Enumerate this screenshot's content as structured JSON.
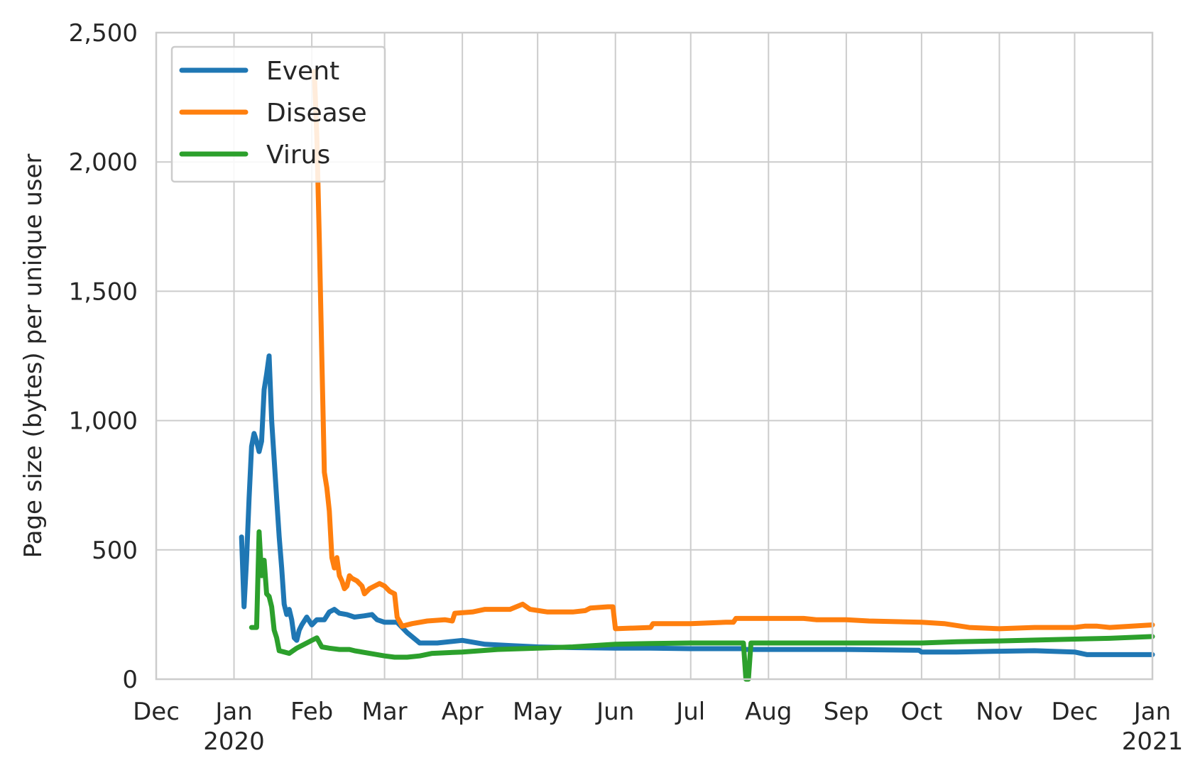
{
  "chart_data": {
    "type": "line",
    "title": "",
    "xlabel": "",
    "ylabel": "Page size (bytes) per unique user",
    "x_ticks": [
      {
        "date": "2019-12-01",
        "label": "Dec",
        "sub": ""
      },
      {
        "date": "2020-01-01",
        "label": "Jan",
        "sub": "2020"
      },
      {
        "date": "2020-02-01",
        "label": "Feb",
        "sub": ""
      },
      {
        "date": "2020-03-01",
        "label": "Mar",
        "sub": ""
      },
      {
        "date": "2020-04-01",
        "label": "Apr",
        "sub": ""
      },
      {
        "date": "2020-05-01",
        "label": "May",
        "sub": ""
      },
      {
        "date": "2020-06-01",
        "label": "Jun",
        "sub": ""
      },
      {
        "date": "2020-07-01",
        "label": "Jul",
        "sub": ""
      },
      {
        "date": "2020-08-01",
        "label": "Aug",
        "sub": ""
      },
      {
        "date": "2020-09-01",
        "label": "Sep",
        "sub": ""
      },
      {
        "date": "2020-10-01",
        "label": "Oct",
        "sub": ""
      },
      {
        "date": "2020-11-01",
        "label": "Nov",
        "sub": ""
      },
      {
        "date": "2020-12-01",
        "label": "Dec",
        "sub": ""
      },
      {
        "date": "2021-01-01",
        "label": "Jan",
        "sub": "2021"
      }
    ],
    "y_ticks": [
      {
        "value": 0,
        "label": "0"
      },
      {
        "value": 500,
        "label": "500"
      },
      {
        "value": 1000,
        "label": "1,000"
      },
      {
        "value": 1500,
        "label": "1,500"
      },
      {
        "value": 2000,
        "label": "2,000"
      },
      {
        "value": 2500,
        "label": "2,500"
      }
    ],
    "xlim": [
      "2019-12-01",
      "2021-01-01"
    ],
    "ylim": [
      0,
      2500
    ],
    "grid": true,
    "legend": "top-left",
    "series": [
      {
        "name": "Event",
        "color": "#1f77b4",
        "points": [
          [
            "2020-01-04",
            550
          ],
          [
            "2020-01-05",
            280
          ],
          [
            "2020-01-06",
            460
          ],
          [
            "2020-01-07",
            700
          ],
          [
            "2020-01-08",
            900
          ],
          [
            "2020-01-09",
            950
          ],
          [
            "2020-01-10",
            920
          ],
          [
            "2020-01-11",
            880
          ],
          [
            "2020-01-12",
            920
          ],
          [
            "2020-01-13",
            1120
          ],
          [
            "2020-01-14",
            1180
          ],
          [
            "2020-01-15",
            1250
          ],
          [
            "2020-01-16",
            1000
          ],
          [
            "2020-01-17",
            850
          ],
          [
            "2020-01-18",
            700
          ],
          [
            "2020-01-19",
            550
          ],
          [
            "2020-01-20",
            430
          ],
          [
            "2020-01-21",
            290
          ],
          [
            "2020-01-22",
            250
          ],
          [
            "2020-01-23",
            270
          ],
          [
            "2020-01-24",
            230
          ],
          [
            "2020-01-25",
            160
          ],
          [
            "2020-01-26",
            150
          ],
          [
            "2020-01-27",
            190
          ],
          [
            "2020-01-28",
            210
          ],
          [
            "2020-01-30",
            240
          ],
          [
            "2020-02-01",
            210
          ],
          [
            "2020-02-03",
            230
          ],
          [
            "2020-02-06",
            230
          ],
          [
            "2020-02-08",
            260
          ],
          [
            "2020-02-10",
            270
          ],
          [
            "2020-02-12",
            255
          ],
          [
            "2020-02-15",
            250
          ],
          [
            "2020-02-18",
            240
          ],
          [
            "2020-02-22",
            245
          ],
          [
            "2020-02-25",
            250
          ],
          [
            "2020-02-27",
            230
          ],
          [
            "2020-03-01",
            220
          ],
          [
            "2020-03-06",
            220
          ],
          [
            "2020-03-10",
            180
          ],
          [
            "2020-03-15",
            140
          ],
          [
            "2020-03-22",
            140
          ],
          [
            "2020-04-01",
            150
          ],
          [
            "2020-04-10",
            135
          ],
          [
            "2020-04-20",
            130
          ],
          [
            "2020-05-01",
            125
          ],
          [
            "2020-05-15",
            122
          ],
          [
            "2020-06-01",
            120
          ],
          [
            "2020-06-15",
            120
          ],
          [
            "2020-07-01",
            118
          ],
          [
            "2020-07-22",
            118
          ],
          [
            "2020-07-23",
            115
          ],
          [
            "2020-08-01",
            115
          ],
          [
            "2020-09-01",
            115
          ],
          [
            "2020-09-30",
            112
          ],
          [
            "2020-10-01",
            105
          ],
          [
            "2020-10-15",
            105
          ],
          [
            "2020-11-01",
            108
          ],
          [
            "2020-11-15",
            110
          ],
          [
            "2020-12-01",
            105
          ],
          [
            "2020-12-06",
            95
          ],
          [
            "2021-01-01",
            95
          ]
        ]
      },
      {
        "name": "Disease",
        "color": "#ff7f0e",
        "points": [
          [
            "2020-02-02",
            2350
          ],
          [
            "2020-02-03",
            2100
          ],
          [
            "2020-02-04",
            1700
          ],
          [
            "2020-02-05",
            1250
          ],
          [
            "2020-02-06",
            800
          ],
          [
            "2020-02-07",
            740
          ],
          [
            "2020-02-08",
            650
          ],
          [
            "2020-02-09",
            470
          ],
          [
            "2020-02-10",
            430
          ],
          [
            "2020-02-11",
            470
          ],
          [
            "2020-02-12",
            400
          ],
          [
            "2020-02-13",
            380
          ],
          [
            "2020-02-14",
            350
          ],
          [
            "2020-02-15",
            360
          ],
          [
            "2020-02-16",
            400
          ],
          [
            "2020-02-17",
            390
          ],
          [
            "2020-02-19",
            380
          ],
          [
            "2020-02-21",
            360
          ],
          [
            "2020-02-22",
            330
          ],
          [
            "2020-02-24",
            350
          ],
          [
            "2020-02-26",
            360
          ],
          [
            "2020-02-28",
            370
          ],
          [
            "2020-03-01",
            360
          ],
          [
            "2020-03-03",
            340
          ],
          [
            "2020-03-05",
            330
          ],
          [
            "2020-03-06",
            240
          ],
          [
            "2020-03-08",
            205
          ],
          [
            "2020-03-12",
            215
          ],
          [
            "2020-03-18",
            225
          ],
          [
            "2020-03-25",
            230
          ],
          [
            "2020-03-28",
            225
          ],
          [
            "2020-03-29",
            255
          ],
          [
            "2020-04-05",
            260
          ],
          [
            "2020-04-10",
            270
          ],
          [
            "2020-04-20",
            270
          ],
          [
            "2020-04-25",
            290
          ],
          [
            "2020-04-28",
            270
          ],
          [
            "2020-05-05",
            260
          ],
          [
            "2020-05-15",
            260
          ],
          [
            "2020-05-20",
            265
          ],
          [
            "2020-05-22",
            275
          ],
          [
            "2020-05-29",
            280
          ],
          [
            "2020-05-31",
            280
          ],
          [
            "2020-06-01",
            195
          ],
          [
            "2020-06-15",
            200
          ],
          [
            "2020-06-16",
            215
          ],
          [
            "2020-07-01",
            215
          ],
          [
            "2020-07-15",
            220
          ],
          [
            "2020-07-18",
            220
          ],
          [
            "2020-07-19",
            235
          ],
          [
            "2020-08-01",
            235
          ],
          [
            "2020-08-15",
            235
          ],
          [
            "2020-08-20",
            230
          ],
          [
            "2020-09-01",
            230
          ],
          [
            "2020-09-10",
            225
          ],
          [
            "2020-10-01",
            220
          ],
          [
            "2020-10-10",
            215
          ],
          [
            "2020-10-20",
            200
          ],
          [
            "2020-11-01",
            195
          ],
          [
            "2020-11-15",
            200
          ],
          [
            "2020-12-01",
            200
          ],
          [
            "2020-12-05",
            205
          ],
          [
            "2020-12-10",
            205
          ],
          [
            "2020-12-15",
            200
          ],
          [
            "2021-01-01",
            210
          ]
        ]
      },
      {
        "name": "Virus",
        "color": "#2ca02c",
        "points": [
          [
            "2020-01-08",
            200
          ],
          [
            "2020-01-10",
            200
          ],
          [
            "2020-01-11",
            570
          ],
          [
            "2020-01-12",
            400
          ],
          [
            "2020-01-13",
            460
          ],
          [
            "2020-01-14",
            330
          ],
          [
            "2020-01-15",
            320
          ],
          [
            "2020-01-16",
            280
          ],
          [
            "2020-01-17",
            190
          ],
          [
            "2020-01-18",
            160
          ],
          [
            "2020-01-19",
            110
          ],
          [
            "2020-01-21",
            105
          ],
          [
            "2020-01-23",
            100
          ],
          [
            "2020-01-26",
            120
          ],
          [
            "2020-01-28",
            130
          ],
          [
            "2020-02-01",
            150
          ],
          [
            "2020-02-03",
            160
          ],
          [
            "2020-02-05",
            125
          ],
          [
            "2020-02-08",
            120
          ],
          [
            "2020-02-12",
            115
          ],
          [
            "2020-02-16",
            115
          ],
          [
            "2020-02-18",
            110
          ],
          [
            "2020-02-24",
            100
          ],
          [
            "2020-03-01",
            90
          ],
          [
            "2020-03-05",
            85
          ],
          [
            "2020-03-10",
            85
          ],
          [
            "2020-03-15",
            90
          ],
          [
            "2020-03-20",
            100
          ],
          [
            "2020-04-01",
            105
          ],
          [
            "2020-04-15",
            115
          ],
          [
            "2020-05-01",
            120
          ],
          [
            "2020-05-15",
            125
          ],
          [
            "2020-06-01",
            135
          ],
          [
            "2020-06-15",
            138
          ],
          [
            "2020-07-01",
            140
          ],
          [
            "2020-07-22",
            140
          ],
          [
            "2020-07-23",
            0
          ],
          [
            "2020-07-24",
            0
          ],
          [
            "2020-07-25",
            140
          ],
          [
            "2020-08-01",
            140
          ],
          [
            "2020-09-01",
            140
          ],
          [
            "2020-10-01",
            140
          ],
          [
            "2020-10-15",
            145
          ],
          [
            "2020-11-01",
            148
          ],
          [
            "2020-12-01",
            155
          ],
          [
            "2020-12-15",
            158
          ],
          [
            "2021-01-01",
            165
          ]
        ]
      }
    ]
  }
}
